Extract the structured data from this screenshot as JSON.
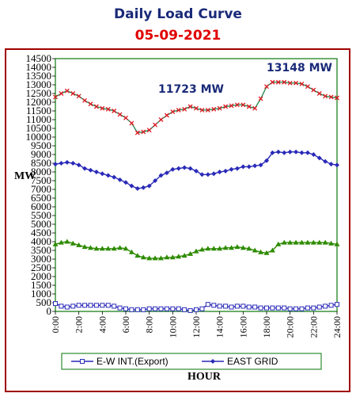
{
  "title": "Daily Load Curve",
  "subtitle": "05-09-2021",
  "chart_data": {
    "type": "line",
    "xlabel": "HOUR",
    "ylabel": "MW",
    "ylim": [
      0,
      14500
    ],
    "y_ticks": [
      0,
      500,
      1000,
      1500,
      2000,
      2500,
      3000,
      3500,
      4000,
      4500,
      5000,
      5500,
      6000,
      6500,
      7000,
      7500,
      8000,
      8500,
      9000,
      9500,
      10000,
      10500,
      11000,
      11500,
      12000,
      12500,
      13000,
      13500,
      14000,
      14500
    ],
    "xlim": [
      0,
      24
    ],
    "x_ticks": [
      "0:00",
      "2:00",
      "4:00",
      "6:00",
      "8:00",
      "10:00",
      "12:00",
      "14:00",
      "16:00",
      "18:00",
      "20:00",
      "22:00",
      "24:00"
    ],
    "grid": false,
    "legend_position": "bottom",
    "x": [
      0,
      0.5,
      1,
      1.5,
      2,
      2.5,
      3,
      3.5,
      4,
      4.5,
      5,
      5.5,
      6,
      6.5,
      7,
      7.5,
      8,
      8.5,
      9,
      9.5,
      10,
      10.5,
      11,
      11.5,
      12,
      12.5,
      13,
      13.5,
      14,
      14.5,
      15,
      15.5,
      16,
      16.5,
      17,
      17.5,
      18,
      18.5,
      19,
      19.5,
      20,
      20.5,
      21,
      21.5,
      22,
      22.5,
      23,
      23.5,
      24
    ],
    "series": [
      {
        "name": "",
        "color": "#2e8b57",
        "marker": "x",
        "values": [
          12300,
          12500,
          12650,
          12500,
          12350,
          12100,
          11900,
          11750,
          11650,
          11600,
          11500,
          11300,
          11100,
          10800,
          10250,
          10300,
          10400,
          10700,
          11000,
          11250,
          11450,
          11550,
          11600,
          11750,
          11650,
          11550,
          11550,
          11600,
          11650,
          11750,
          11800,
          11850,
          11850,
          11750,
          11650,
          12200,
          12900,
          13148,
          13148,
          13148,
          13100,
          13100,
          13050,
          12900,
          12700,
          12500,
          12350,
          12300,
          12250
        ]
      },
      {
        "name": "EAST GRID",
        "color": "#2a2ab8",
        "marker": "diamond",
        "values": [
          8450,
          8500,
          8550,
          8500,
          8400,
          8200,
          8100,
          8000,
          7900,
          7800,
          7700,
          7550,
          7400,
          7200,
          7050,
          7100,
          7200,
          7500,
          7800,
          7950,
          8150,
          8200,
          8250,
          8200,
          8050,
          7850,
          7850,
          7900,
          8000,
          8050,
          8150,
          8200,
          8300,
          8300,
          8350,
          8400,
          8650,
          9100,
          9150,
          9100,
          9150,
          9150,
          9100,
          9100,
          9000,
          8800,
          8600,
          8450,
          8400
        ]
      },
      {
        "name": "",
        "color": "#2e8b00",
        "marker": "triangle",
        "values": [
          3850,
          3950,
          4000,
          3900,
          3800,
          3700,
          3650,
          3600,
          3600,
          3600,
          3600,
          3650,
          3600,
          3400,
          3200,
          3100,
          3050,
          3050,
          3050,
          3100,
          3100,
          3150,
          3200,
          3300,
          3450,
          3550,
          3600,
          3600,
          3600,
          3650,
          3650,
          3700,
          3650,
          3600,
          3500,
          3400,
          3350,
          3500,
          3850,
          3950,
          3950,
          3950,
          3950,
          3950,
          3950,
          3950,
          3950,
          3900,
          3850
        ]
      },
      {
        "name": "E-W INT.(Export)",
        "color": "#2a2ab8",
        "marker": "square",
        "values": [
          450,
          300,
          250,
          300,
          350,
          350,
          350,
          350,
          350,
          350,
          300,
          200,
          150,
          100,
          100,
          100,
          150,
          150,
          150,
          150,
          150,
          150,
          100,
          50,
          100,
          150,
          400,
          350,
          300,
          300,
          250,
          300,
          300,
          250,
          250,
          200,
          200,
          200,
          200,
          200,
          150,
          150,
          150,
          200,
          200,
          250,
          300,
          350,
          400
        ]
      }
    ],
    "annotations": [
      "11723 MW",
      "13148 MW"
    ]
  }
}
